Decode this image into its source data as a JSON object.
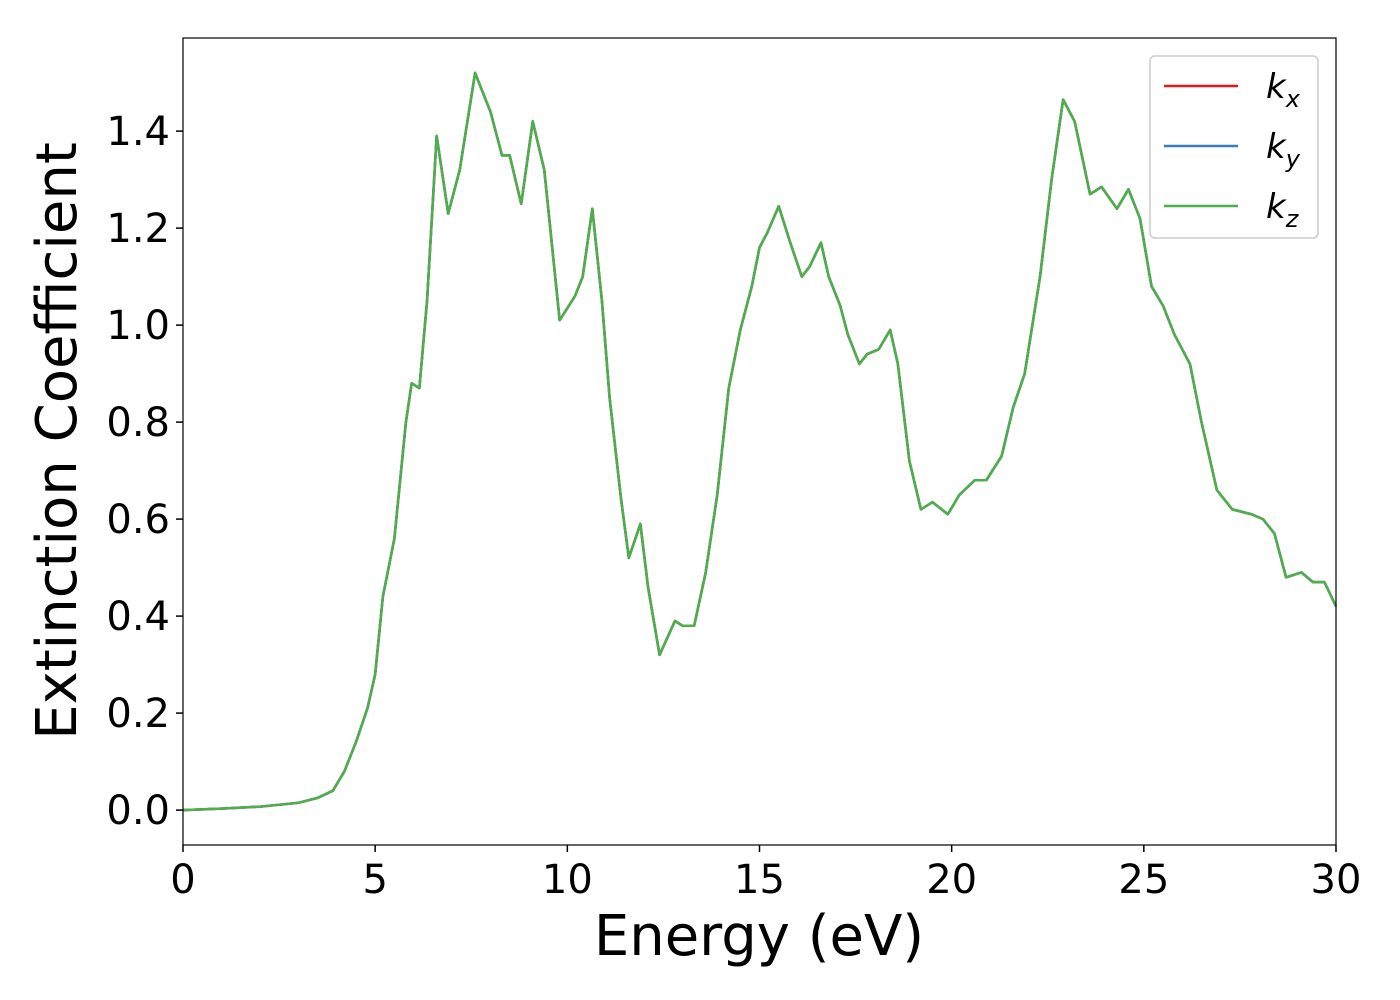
{
  "chart_data": {
    "type": "line",
    "x_label": "Energy (eV)",
    "y_label": "Extinction Coefficient",
    "x": [
      0,
      1,
      2,
      3,
      3.5,
      3.9,
      4.2,
      4.5,
      4.8,
      5.0,
      5.2,
      5.5,
      5.8,
      5.95,
      6.15,
      6.35,
      6.6,
      6.9,
      7.2,
      7.6,
      8.0,
      8.3,
      8.5,
      8.8,
      9.1,
      9.4,
      9.8,
      10.2,
      10.4,
      10.65,
      10.9,
      11.1,
      11.4,
      11.6,
      11.9,
      12.1,
      12.4,
      12.8,
      13.0,
      13.3,
      13.6,
      13.9,
      14.2,
      14.5,
      14.8,
      15.0,
      15.2,
      15.5,
      15.8,
      16.1,
      16.3,
      16.6,
      16.8,
      17.1,
      17.3,
      17.6,
      17.8,
      18.1,
      18.4,
      18.6,
      18.9,
      19.2,
      19.5,
      19.9,
      20.2,
      20.6,
      20.9,
      21.3,
      21.6,
      21.9,
      22.3,
      22.6,
      22.9,
      23.2,
      23.6,
      23.9,
      24.3,
      24.6,
      24.9,
      25.2,
      25.5,
      25.8,
      26.2,
      26.5,
      26.9,
      27.3,
      27.8,
      28.1,
      28.4,
      28.7,
      29.1,
      29.4,
      29.7,
      30
    ],
    "series": [
      {
        "name": "kx",
        "color": "#e41a1c",
        "values": [
          0.0,
          0.003,
          0.007,
          0.015,
          0.025,
          0.04,
          0.08,
          0.14,
          0.21,
          0.28,
          0.44,
          0.56,
          0.8,
          0.88,
          0.87,
          1.05,
          1.39,
          1.23,
          1.32,
          1.52,
          1.44,
          1.35,
          1.35,
          1.25,
          1.42,
          1.32,
          1.01,
          1.06,
          1.1,
          1.24,
          1.05,
          0.85,
          0.64,
          0.52,
          0.59,
          0.46,
          0.32,
          0.39,
          0.38,
          0.38,
          0.49,
          0.65,
          0.87,
          0.99,
          1.08,
          1.16,
          1.19,
          1.245,
          1.17,
          1.1,
          1.12,
          1.17,
          1.1,
          1.04,
          0.98,
          0.92,
          0.94,
          0.95,
          0.99,
          0.92,
          0.72,
          0.62,
          0.635,
          0.61,
          0.65,
          0.68,
          0.68,
          0.73,
          0.83,
          0.9,
          1.1,
          1.3,
          1.465,
          1.42,
          1.27,
          1.285,
          1.24,
          1.28,
          1.22,
          1.08,
          1.04,
          0.98,
          0.92,
          0.8,
          0.66,
          0.62,
          0.61,
          0.6,
          0.57,
          0.48,
          0.49,
          0.47,
          0.47,
          0.42
        ]
      },
      {
        "name": "ky",
        "color": "#377eb8",
        "values": [
          0.0,
          0.003,
          0.007,
          0.015,
          0.025,
          0.04,
          0.08,
          0.14,
          0.21,
          0.28,
          0.44,
          0.56,
          0.8,
          0.88,
          0.87,
          1.05,
          1.39,
          1.23,
          1.32,
          1.52,
          1.44,
          1.35,
          1.35,
          1.25,
          1.42,
          1.32,
          1.01,
          1.06,
          1.1,
          1.24,
          1.05,
          0.85,
          0.64,
          0.52,
          0.59,
          0.46,
          0.32,
          0.39,
          0.38,
          0.38,
          0.49,
          0.65,
          0.87,
          0.99,
          1.08,
          1.16,
          1.19,
          1.245,
          1.17,
          1.1,
          1.12,
          1.17,
          1.1,
          1.04,
          0.98,
          0.92,
          0.94,
          0.95,
          0.99,
          0.92,
          0.72,
          0.62,
          0.635,
          0.61,
          0.65,
          0.68,
          0.68,
          0.73,
          0.83,
          0.9,
          1.1,
          1.3,
          1.465,
          1.42,
          1.27,
          1.285,
          1.24,
          1.28,
          1.22,
          1.08,
          1.04,
          0.98,
          0.92,
          0.8,
          0.66,
          0.62,
          0.61,
          0.6,
          0.57,
          0.48,
          0.49,
          0.47,
          0.47,
          0.42
        ]
      },
      {
        "name": "kz",
        "color": "#4daf4a",
        "values": [
          0.0,
          0.003,
          0.007,
          0.015,
          0.025,
          0.04,
          0.08,
          0.14,
          0.21,
          0.28,
          0.44,
          0.56,
          0.8,
          0.88,
          0.87,
          1.05,
          1.39,
          1.23,
          1.32,
          1.52,
          1.44,
          1.35,
          1.35,
          1.25,
          1.42,
          1.32,
          1.01,
          1.06,
          1.1,
          1.24,
          1.05,
          0.85,
          0.64,
          0.52,
          0.59,
          0.46,
          0.32,
          0.39,
          0.38,
          0.38,
          0.49,
          0.65,
          0.87,
          0.99,
          1.08,
          1.16,
          1.19,
          1.245,
          1.17,
          1.1,
          1.12,
          1.17,
          1.1,
          1.04,
          0.98,
          0.92,
          0.94,
          0.95,
          0.99,
          0.92,
          0.72,
          0.62,
          0.635,
          0.61,
          0.65,
          0.68,
          0.68,
          0.73,
          0.83,
          0.9,
          1.1,
          1.3,
          1.465,
          1.42,
          1.27,
          1.285,
          1.24,
          1.28,
          1.22,
          1.08,
          1.04,
          0.98,
          0.92,
          0.8,
          0.66,
          0.62,
          0.61,
          0.6,
          0.57,
          0.48,
          0.49,
          0.47,
          0.47,
          0.42
        ]
      }
    ],
    "xlim": [
      0,
      30
    ],
    "xticks": [
      0,
      5,
      10,
      15,
      20,
      25,
      30
    ],
    "ylim": [
      -0.072,
      1.592
    ],
    "yticks": [
      {
        "value": 0,
        "label": "0.0"
      },
      0.2,
      0.4,
      0.6,
      0.8,
      {
        "value": 1,
        "label": "1.0"
      },
      1.2,
      1.4
    ],
    "legend": "upper right"
  }
}
